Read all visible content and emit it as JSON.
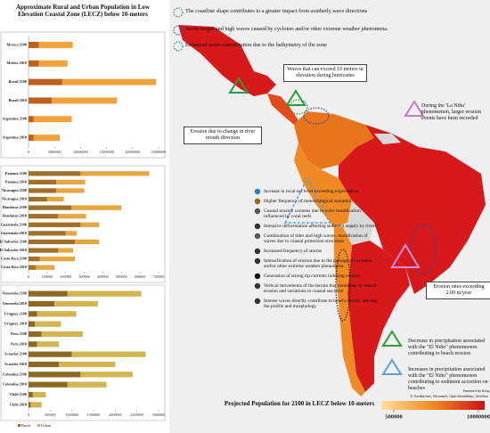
{
  "title": "Approximate Rural and Urban Population in Low Elevation Coastal Zone (LECZ) below 10-meters",
  "chart_data": [
    {
      "type": "stacked-bar",
      "categories": [
        "Mexico 2100",
        "Mexico 2010",
        "Brazil 2100",
        "Brazil 2010",
        "Argentina 2100",
        "Argentina 2010"
      ],
      "series": [
        {
          "color": "#c0601e",
          "values": [
            2000000,
            2000000,
            6500000,
            4500000,
            1000000,
            1000000
          ]
        },
        {
          "color": "#f2a23c",
          "values": [
            6500000,
            5500000,
            18000000,
            12500000,
            7300000,
            5000000
          ]
        }
      ],
      "xlim": [
        0,
        25000000
      ],
      "xticks": [
        0,
        5000000,
        10000000,
        15000000,
        20000000,
        25000000
      ]
    },
    {
      "type": "stacked-bar",
      "categories": [
        "Panama 2100",
        "Panama 2010",
        "Nicaragua 2100",
        "Nicaragua 2010",
        "Honduras 2100",
        "Honduras 2010",
        "Guatemala 2100",
        "Guatemala 2010",
        "El Salvador 2100",
        "El Salvador 2010",
        "Costa Rica 2100",
        "Costa Rica 2010"
      ],
      "series": [
        {
          "color": "#a0702a",
          "values": [
            280000,
            150000,
            150000,
            100000,
            230000,
            160000,
            280000,
            200000,
            250000,
            160000,
            60000,
            40000
          ]
        },
        {
          "color": "#e8a640",
          "values": [
            370000,
            155000,
            150000,
            90000,
            270000,
            150000,
            100000,
            60000,
            130000,
            80000,
            190000,
            100000
          ]
        }
      ],
      "xlim": [
        0,
        700000
      ],
      "xticks": [
        0,
        100000,
        200000,
        300000,
        400000,
        500000,
        600000,
        700000
      ]
    },
    {
      "type": "stacked-bar",
      "categories": [
        "Venezuela 2100",
        "Venezuela 2010",
        "Uruguay 2100",
        "Uruguay 2010",
        "Peru 2100",
        "Peru 2010",
        "Ecuador 2100",
        "Ecuador 2010",
        "Colombia 2100",
        "Colombia 2010",
        "Chile 2100",
        "Chile 2010"
      ],
      "series": [
        {
          "name": "Rural",
          "color": "#8c6a24",
          "values": [
            900000,
            600000,
            200000,
            150000,
            300000,
            200000,
            1000000,
            700000,
            1200000,
            900000,
            100000,
            50000
          ]
        },
        {
          "name": "Urban",
          "color": "#d2b451",
          "values": [
            1700000,
            1000000,
            900000,
            600000,
            950000,
            500000,
            1700000,
            1300000,
            1200000,
            900000,
            300000,
            250000
          ]
        }
      ],
      "xlim": [
        0,
        3000000
      ],
      "xticks": [
        0,
        500000,
        1000000,
        1500000,
        2000000,
        2500000,
        3000000
      ]
    }
  ],
  "map": {
    "zones": [
      "The coastline shape contributes to a greater impact from southerly wave directions",
      "Storm surges and high waves caused by cyclones and/or other extreme weather phenomena.",
      "Enhanced wave concentration due to the bathymetry of the zone"
    ],
    "callouts": [
      "Waves that can exceed 10 meters in elevation during hurricanes",
      "During the 'La Niña' phenomenon, larger erosion events have been recorded",
      "Erosion due to change in river mouth direction",
      "Erosion rates exceeding 2.00 m/year",
      "Decrease in precipitation associated with the \"El Niño\" phenomenon contributing to beach erosion",
      "Increases in precipitation associated with the \"El Niño\" phenomenon contributing to sediment accretion on beaches"
    ],
    "symbols": [
      "Increase in local sea level exceeding expectations",
      "Higher frequency of meteorological tsunamis",
      "Coastal erosion worsens due to wave modification influenced by coral reefs",
      "Intensive deforestation affecting sediment supply by rivers",
      "Combination of tides and high waves; modification of waves due to coastal protection structures",
      "Increased frequency of storms",
      "Intensification of erosion due to the passage of cyclones and/or other extreme weather phenomena",
      "Generation of strong rip currents inducing erosion",
      "Vertical movements of the terrain that contribute to coastal erosion and variations in coastal sea level",
      "Intense waves directly contribute to beach erosion, altering the profile and morphology"
    ],
    "colorscale": {
      "title": "Projected Population for 2100 in LECZ below 10-meters",
      "ticks": [
        500000,
        10000000
      ]
    },
    "credit": "Powered by Bing",
    "attribution": "© GeoNames, Microsoft, OpenStreetMap, TomTom"
  }
}
